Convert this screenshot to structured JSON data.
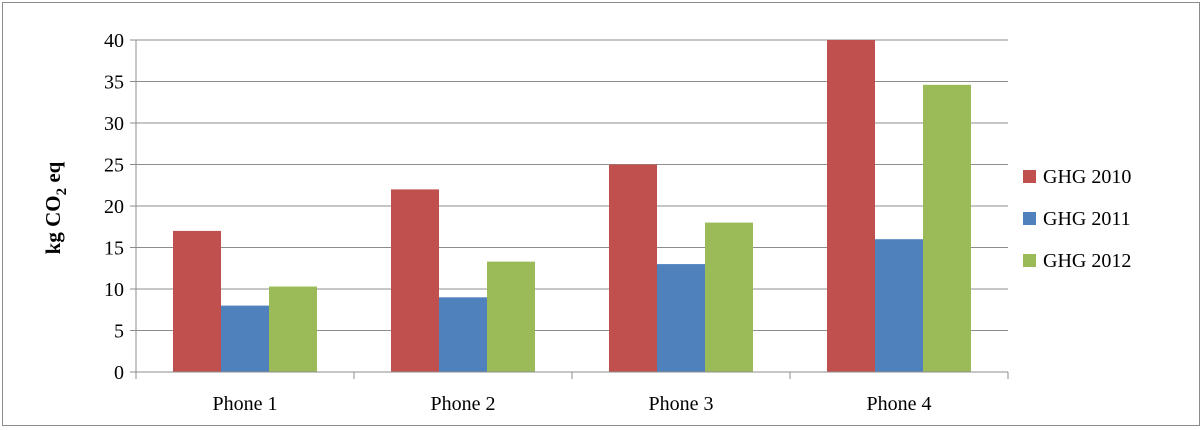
{
  "chart_data": {
    "type": "bar",
    "categories": [
      "Phone 1",
      "Phone 2",
      "Phone 3",
      "Phone 4"
    ],
    "series": [
      {
        "name": "GHG 2010",
        "color": "#c0504d",
        "values": [
          17,
          22,
          25,
          40
        ]
      },
      {
        "name": "GHG 2011",
        "color": "#4f81bd",
        "values": [
          8,
          9,
          13,
          16
        ]
      },
      {
        "name": "GHG 2012",
        "color": "#9bbb59",
        "values": [
          10.3,
          13.3,
          18,
          34.6
        ]
      }
    ],
    "title": "",
    "xlabel": "",
    "ylabel": {
      "prefix": "kg CO",
      "subscript": "2",
      "suffix": " eq"
    },
    "ylim": [
      0,
      40
    ],
    "yticks": [
      "0",
      "5",
      "10",
      "15",
      "20",
      "25",
      "30",
      "35",
      "40"
    ],
    "grid": true,
    "legend_position": "right"
  }
}
